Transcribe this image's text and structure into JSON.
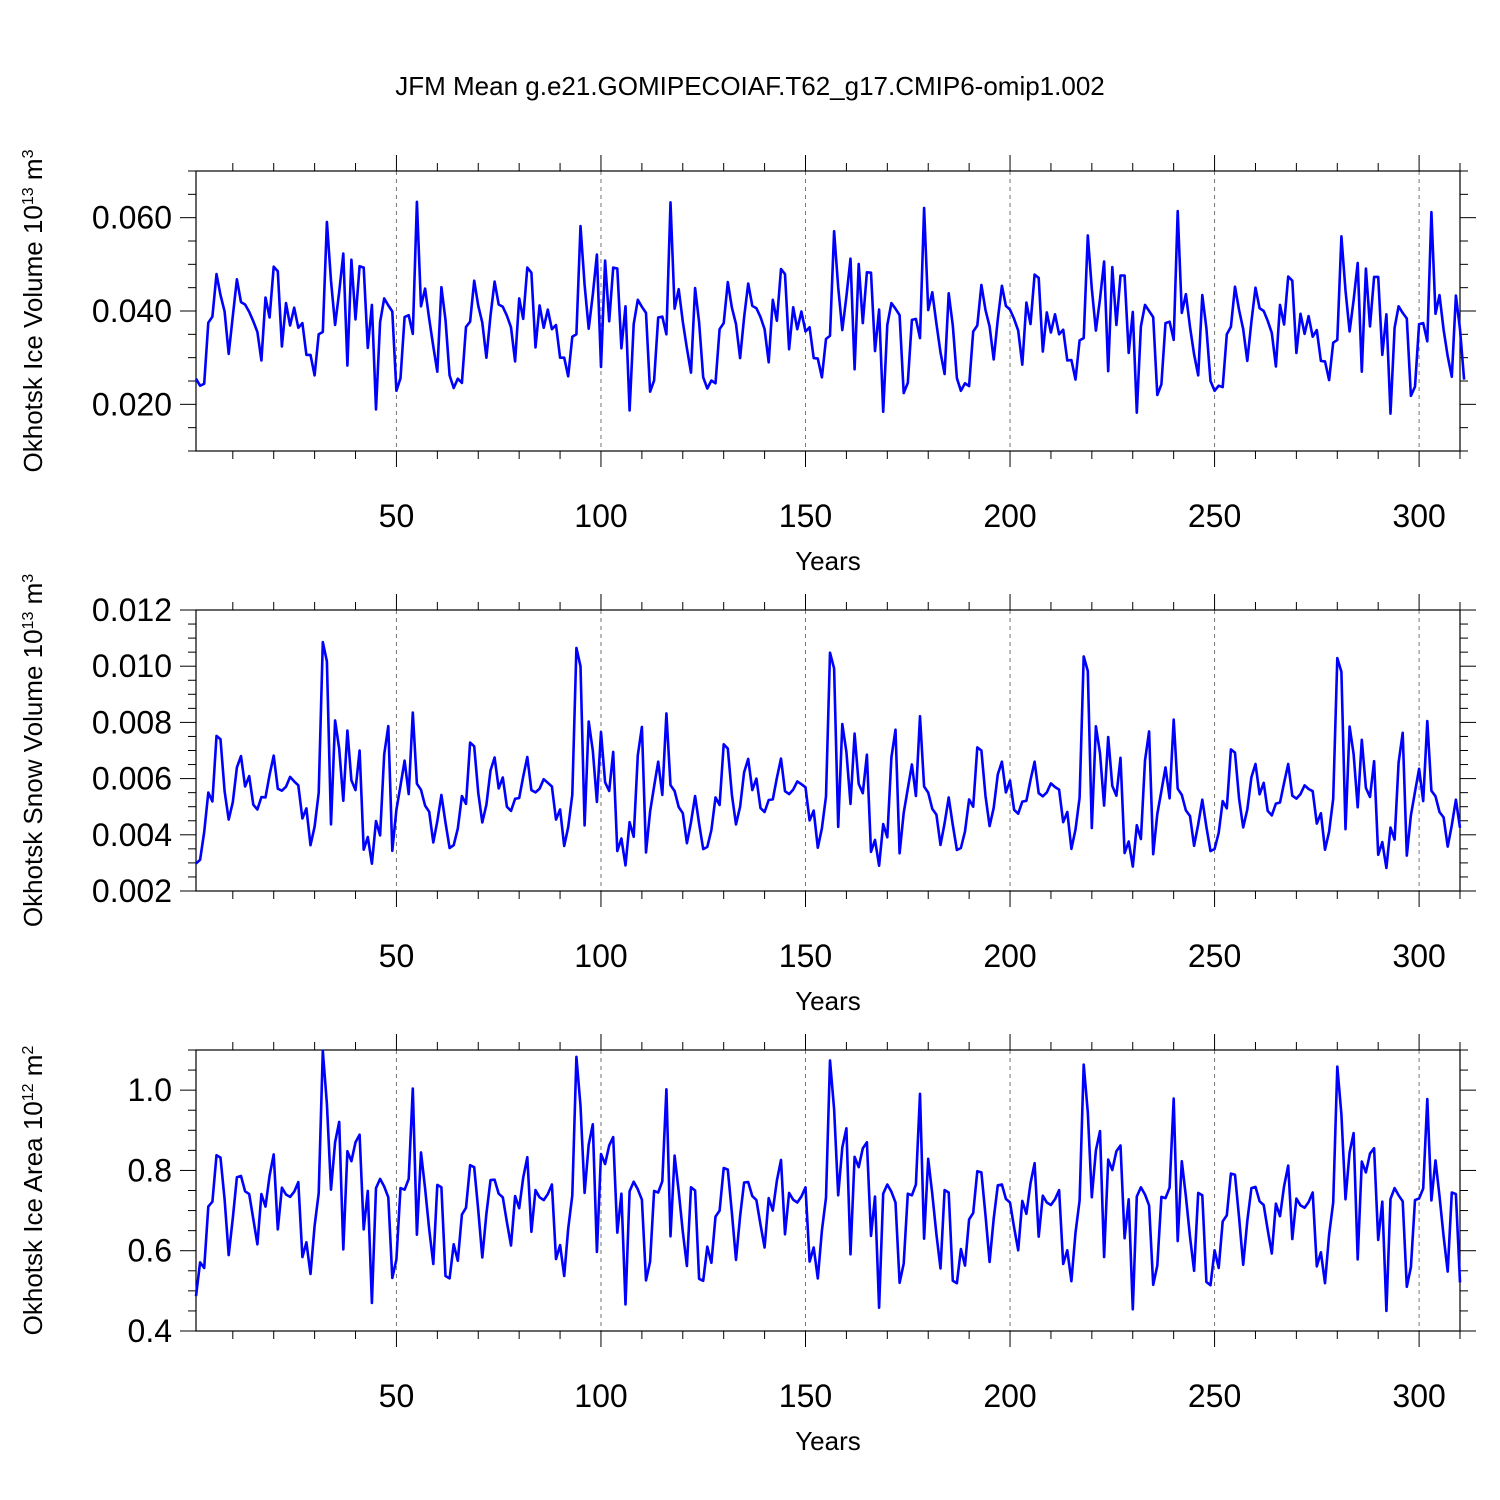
{
  "title": "JFM Mean g.e21.GOMIPECOIAF.T62_g17.CMIP6-omip1.002",
  "colors": {
    "line": "#0000ff",
    "axis": "#000000",
    "grid": "#777777"
  },
  "chart_data": [
    {
      "type": "line",
      "name": "ice-volume",
      "ylabel": {
        "text": "Okhotsk Ice Volume 10",
        "exp": "13",
        "unit": " m",
        "unit_exp": "3"
      },
      "xlabel": "Years",
      "xlim": [
        1,
        310
      ],
      "ylim": [
        0.01,
        0.07
      ],
      "yticks": [
        0.02,
        0.04,
        0.06
      ],
      "ytick_labels": [
        "0.020",
        "0.040",
        "0.060"
      ],
      "xticks": [
        50,
        100,
        150,
        200,
        250,
        300
      ],
      "xtick_labels": [
        "50",
        "100",
        "150",
        "200",
        "250",
        "300"
      ],
      "values": [
        0.0255,
        0.024,
        0.0244,
        0.0375,
        0.0388,
        0.0479,
        0.0434,
        0.0399,
        0.0308,
        0.0389,
        0.0468,
        0.0419,
        0.0414,
        0.0398,
        0.0378,
        0.0355,
        0.0294,
        0.0429,
        0.0386,
        0.0495,
        0.0485,
        0.0324,
        0.0417,
        0.0369,
        0.0407,
        0.0364,
        0.0374,
        0.0306,
        0.0306,
        0.0262,
        0.035,
        0.0355,
        0.0591,
        0.0465,
        0.037,
        0.0441,
        0.0523,
        0.0283,
        0.051,
        0.0382,
        0.0496,
        0.0493,
        0.0321,
        0.0413,
        0.0189,
        0.0376,
        0.0427,
        0.0412,
        0.0399,
        0.0229,
        0.0256,
        0.0387,
        0.0391,
        0.0351,
        0.0634,
        0.041,
        0.0448,
        0.0383,
        0.0324,
        0.027,
        0.0451,
        0.0381,
        0.0262,
        0.0235,
        0.0255,
        0.0246,
        0.0366,
        0.0377,
        0.0465,
        0.0411,
        0.0375,
        0.03,
        0.039,
        0.0463,
        0.0414,
        0.0409,
        0.039,
        0.0365,
        0.0292,
        0.0427,
        0.0383,
        0.0493,
        0.0482,
        0.0322,
        0.0412,
        0.0364,
        0.0403,
        0.0361,
        0.037,
        0.03,
        0.03,
        0.026,
        0.0345,
        0.035,
        0.0582,
        0.0456,
        0.0362,
        0.0435,
        0.0521,
        0.028,
        0.0508,
        0.0378,
        0.0493,
        0.0491,
        0.032,
        0.041,
        0.0187,
        0.0372,
        0.0424,
        0.0409,
        0.0396,
        0.0227,
        0.0251,
        0.0386,
        0.0388,
        0.035,
        0.0633,
        0.0405,
        0.0447,
        0.0377,
        0.032,
        0.0268,
        0.0449,
        0.0376,
        0.0258,
        0.0234,
        0.0251,
        0.0245,
        0.0361,
        0.0374,
        0.0462,
        0.0407,
        0.0372,
        0.0299,
        0.0386,
        0.0459,
        0.0411,
        0.0406,
        0.0387,
        0.0361,
        0.029,
        0.0424,
        0.0379,
        0.049,
        0.0479,
        0.0318,
        0.0408,
        0.0361,
        0.0399,
        0.0356,
        0.0365,
        0.0299,
        0.0298,
        0.0258,
        0.034,
        0.0347,
        0.0571,
        0.0451,
        0.0359,
        0.0431,
        0.0512,
        0.0275,
        0.0501,
        0.0374,
        0.0483,
        0.0482,
        0.0314,
        0.0403,
        0.0184,
        0.037,
        0.0417,
        0.0405,
        0.0391,
        0.0224,
        0.0246,
        0.0381,
        0.0383,
        0.0342,
        0.0621,
        0.0402,
        0.044,
        0.0373,
        0.0311,
        0.0265,
        0.0438,
        0.0369,
        0.0256,
        0.0229,
        0.0245,
        0.0239,
        0.0356,
        0.0369,
        0.0456,
        0.0402,
        0.0367,
        0.0296,
        0.0382,
        0.0454,
        0.0411,
        0.0403,
        0.0383,
        0.0358,
        0.0285,
        0.0418,
        0.0372,
        0.0478,
        0.0471,
        0.0313,
        0.0397,
        0.0354,
        0.0393,
        0.035,
        0.036,
        0.0294,
        0.0295,
        0.0253,
        0.0337,
        0.0342,
        0.0562,
        0.0448,
        0.0358,
        0.0426,
        0.0506,
        0.0271,
        0.0494,
        0.037,
        0.0476,
        0.0476,
        0.031,
        0.0398,
        0.0182,
        0.0367,
        0.0413,
        0.04,
        0.0387,
        0.022,
        0.0243,
        0.0374,
        0.0377,
        0.0338,
        0.0614,
        0.0396,
        0.0436,
        0.0366,
        0.0307,
        0.0262,
        0.0434,
        0.0363,
        0.025,
        0.0229,
        0.024,
        0.0237,
        0.035,
        0.0366,
        0.0452,
        0.0402,
        0.0361,
        0.0293,
        0.0377,
        0.045,
        0.0406,
        0.04,
        0.0379,
        0.0353,
        0.0281,
        0.0413,
        0.0371,
        0.0474,
        0.0465,
        0.031,
        0.0394,
        0.0351,
        0.0389,
        0.0345,
        0.0359,
        0.0293,
        0.0292,
        0.0252,
        0.0332,
        0.0338,
        0.056,
        0.0444,
        0.0356,
        0.0423,
        0.0503,
        0.027,
        0.0491,
        0.0367,
        0.0473,
        0.0473,
        0.0306,
        0.0393,
        0.018,
        0.0364,
        0.041,
        0.0396,
        0.0384,
        0.0218,
        0.0238,
        0.0372,
        0.0374,
        0.0335,
        0.0612,
        0.0394,
        0.0434,
        0.036,
        0.0303,
        0.0259,
        0.0433,
        0.0361,
        0.0253
      ]
    },
    {
      "type": "line",
      "name": "snow-volume",
      "ylabel": {
        "text": "Okhotsk Snow Volume 10",
        "exp": "13",
        "unit": " m",
        "unit_exp": "3"
      },
      "xlabel": "Years",
      "xlim": [
        1,
        310
      ],
      "ylim": [
        0.002,
        0.012
      ],
      "yticks": [
        0.002,
        0.004,
        0.006,
        0.008,
        0.01,
        0.012
      ],
      "ytick_labels": [
        "0.002",
        "0.004",
        "0.006",
        "0.008",
        "0.010",
        "0.012"
      ],
      "xticks": [
        50,
        100,
        150,
        200,
        250,
        300
      ],
      "xtick_labels": [
        "50",
        "100",
        "150",
        "200",
        "250",
        "300"
      ],
      "values": [
        0.00298,
        0.00311,
        0.0041,
        0.0055,
        0.00519,
        0.00752,
        0.0074,
        0.00555,
        0.00454,
        0.00516,
        0.0064,
        0.0068,
        0.00572,
        0.00609,
        0.00507,
        0.0049,
        0.00534,
        0.00533,
        0.00614,
        0.00682,
        0.00564,
        0.00557,
        0.00571,
        0.00606,
        0.0059,
        0.00576,
        0.00458,
        0.00494,
        0.00363,
        0.00429,
        0.00549,
        0.01086,
        0.01017,
        0.00437,
        0.00807,
        0.00706,
        0.00521,
        0.00771,
        0.00594,
        0.00559,
        0.007,
        0.00347,
        0.00392,
        0.00297,
        0.00449,
        0.00398,
        0.00686,
        0.00787,
        0.00343,
        0.00489,
        0.00575,
        0.00664,
        0.00545,
        0.00835,
        0.00582,
        0.0056,
        0.00504,
        0.00482,
        0.00373,
        0.00448,
        0.00542,
        0.00443,
        0.00353,
        0.00363,
        0.00422,
        0.00538,
        0.0051,
        0.00728,
        0.00715,
        0.00548,
        0.00444,
        0.00507,
        0.00629,
        0.00675,
        0.00565,
        0.00604,
        0.005,
        0.00485,
        0.00528,
        0.00531,
        0.00607,
        0.00677,
        0.00559,
        0.00551,
        0.00564,
        0.00598,
        0.00585,
        0.00572,
        0.00454,
        0.0049,
        0.0036,
        0.00427,
        0.00543,
        0.01065,
        0.01,
        0.00433,
        0.00803,
        0.007,
        0.00517,
        0.00766,
        0.00587,
        0.00556,
        0.00695,
        0.00342,
        0.00387,
        0.00291,
        0.00445,
        0.00393,
        0.00683,
        0.00784,
        0.00337,
        0.00483,
        0.00572,
        0.0066,
        0.00542,
        0.00832,
        0.00577,
        0.00556,
        0.00499,
        0.00477,
        0.0037,
        0.00445,
        0.00538,
        0.0044,
        0.00349,
        0.00357,
        0.00417,
        0.00533,
        0.00506,
        0.00722,
        0.00707,
        0.00542,
        0.00437,
        0.005,
        0.00622,
        0.0067,
        0.00559,
        0.006,
        0.00495,
        0.00481,
        0.00524,
        0.00526,
        0.00603,
        0.00671,
        0.00555,
        0.00545,
        0.00561,
        0.0059,
        0.0058,
        0.00569,
        0.00451,
        0.00486,
        0.00354,
        0.00423,
        0.00537,
        0.01048,
        0.00992,
        0.00428,
        0.00794,
        0.00695,
        0.0051,
        0.0076,
        0.00581,
        0.00548,
        0.00685,
        0.00339,
        0.00382,
        0.0029,
        0.00438,
        0.00391,
        0.00675,
        0.00774,
        0.00334,
        0.00478,
        0.00564,
        0.0065,
        0.00538,
        0.00822,
        0.00572,
        0.0055,
        0.00492,
        0.00472,
        0.00364,
        0.00441,
        0.00533,
        0.00435,
        0.00346,
        0.00353,
        0.00412,
        0.00526,
        0.005,
        0.00711,
        0.007,
        0.00538,
        0.00431,
        0.00496,
        0.00615,
        0.0066,
        0.00551,
        0.00593,
        0.00489,
        0.00475,
        0.00518,
        0.00521,
        0.00595,
        0.0066,
        0.00548,
        0.00537,
        0.00551,
        0.00583,
        0.0057,
        0.00561,
        0.00445,
        0.00481,
        0.0035,
        0.00419,
        0.00532,
        0.01035,
        0.00983,
        0.00424,
        0.00786,
        0.0069,
        0.00504,
        0.00748,
        0.00574,
        0.00539,
        0.00674,
        0.00335,
        0.00376,
        0.00287,
        0.00434,
        0.00385,
        0.00664,
        0.00768,
        0.00331,
        0.00474,
        0.00556,
        0.0064,
        0.0053,
        0.0081,
        0.00564,
        0.00542,
        0.00487,
        0.00467,
        0.00361,
        0.00437,
        0.00525,
        0.00428,
        0.00342,
        0.0035,
        0.00407,
        0.0052,
        0.00494,
        0.00704,
        0.00692,
        0.00528,
        0.00426,
        0.0049,
        0.00605,
        0.00652,
        0.00544,
        0.00585,
        0.00485,
        0.00469,
        0.00511,
        0.00515,
        0.00585,
        0.00652,
        0.00539,
        0.00529,
        0.00545,
        0.00576,
        0.00563,
        0.00555,
        0.0044,
        0.00477,
        0.00347,
        0.00411,
        0.00528,
        0.01029,
        0.0098,
        0.0042,
        0.00785,
        0.00688,
        0.00498,
        0.00738,
        0.00567,
        0.00535,
        0.00662,
        0.00329,
        0.00374,
        0.00282,
        0.00426,
        0.00383,
        0.00657,
        0.00763,
        0.00326,
        0.00469,
        0.00553,
        0.00635,
        0.0052,
        0.00805,
        0.00557,
        0.00537,
        0.00481,
        0.00462,
        0.00358,
        0.00434,
        0.00525,
        0.00425
      ]
    },
    {
      "type": "line",
      "name": "ice-area",
      "ylabel": {
        "text": "Okhotsk Ice Area 10",
        "exp": "12",
        "unit": " m",
        "unit_exp": "2"
      },
      "xlabel": "Years",
      "xlim": [
        1,
        310
      ],
      "ylim": [
        0.4,
        1.1
      ],
      "yticks": [
        0.4,
        0.6,
        0.8,
        1.0
      ],
      "ytick_labels": [
        "0.4",
        "0.6",
        "0.8",
        "1.0"
      ],
      "xticks": [
        50,
        100,
        150,
        200,
        250,
        300
      ],
      "xtick_labels": [
        "50",
        "100",
        "150",
        "200",
        "250",
        "300"
      ],
      "values": [
        0.487,
        0.571,
        0.557,
        0.71,
        0.722,
        0.838,
        0.832,
        0.728,
        0.589,
        0.681,
        0.783,
        0.786,
        0.748,
        0.741,
        0.679,
        0.616,
        0.741,
        0.71,
        0.787,
        0.84,
        0.653,
        0.757,
        0.74,
        0.734,
        0.747,
        0.771,
        0.584,
        0.621,
        0.542,
        0.662,
        0.743,
        1.098,
        0.966,
        0.752,
        0.87,
        0.921,
        0.603,
        0.848,
        0.823,
        0.87,
        0.889,
        0.653,
        0.749,
        0.47,
        0.756,
        0.779,
        0.76,
        0.733,
        0.532,
        0.578,
        0.756,
        0.752,
        0.779,
        1.004,
        0.64,
        0.845,
        0.755,
        0.653,
        0.567,
        0.764,
        0.758,
        0.537,
        0.531,
        0.616,
        0.575,
        0.69,
        0.707,
        0.813,
        0.808,
        0.7,
        0.583,
        0.692,
        0.776,
        0.777,
        0.742,
        0.733,
        0.671,
        0.613,
        0.736,
        0.706,
        0.782,
        0.833,
        0.647,
        0.751,
        0.733,
        0.726,
        0.741,
        0.765,
        0.579,
        0.614,
        0.537,
        0.655,
        0.738,
        1.083,
        0.961,
        0.744,
        0.864,
        0.915,
        0.597,
        0.841,
        0.816,
        0.862,
        0.883,
        0.645,
        0.742,
        0.466,
        0.748,
        0.772,
        0.753,
        0.727,
        0.526,
        0.573,
        0.749,
        0.745,
        0.773,
        1.002,
        0.636,
        0.837,
        0.748,
        0.647,
        0.562,
        0.758,
        0.75,
        0.53,
        0.525,
        0.61,
        0.57,
        0.685,
        0.7,
        0.806,
        0.802,
        0.694,
        0.577,
        0.686,
        0.77,
        0.771,
        0.736,
        0.726,
        0.665,
        0.608,
        0.731,
        0.7,
        0.775,
        0.826,
        0.641,
        0.744,
        0.727,
        0.72,
        0.735,
        0.758,
        0.573,
        0.608,
        0.531,
        0.65,
        0.732,
        1.074,
        0.953,
        0.738,
        0.857,
        0.905,
        0.591,
        0.834,
        0.808,
        0.855,
        0.87,
        0.637,
        0.735,
        0.458,
        0.742,
        0.765,
        0.747,
        0.72,
        0.52,
        0.568,
        0.742,
        0.738,
        0.765,
        0.991,
        0.63,
        0.829,
        0.741,
        0.641,
        0.556,
        0.751,
        0.745,
        0.525,
        0.519,
        0.604,
        0.563,
        0.678,
        0.694,
        0.798,
        0.795,
        0.688,
        0.572,
        0.68,
        0.763,
        0.765,
        0.729,
        0.72,
        0.658,
        0.601,
        0.724,
        0.692,
        0.768,
        0.818,
        0.635,
        0.737,
        0.72,
        0.714,
        0.728,
        0.751,
        0.567,
        0.601,
        0.524,
        0.645,
        0.725,
        1.064,
        0.945,
        0.733,
        0.85,
        0.898,
        0.584,
        0.827,
        0.801,
        0.848,
        0.862,
        0.631,
        0.728,
        0.454,
        0.735,
        0.758,
        0.74,
        0.713,
        0.515,
        0.563,
        0.734,
        0.731,
        0.757,
        0.979,
        0.624,
        0.823,
        0.735,
        0.635,
        0.55,
        0.744,
        0.738,
        0.522,
        0.514,
        0.601,
        0.557,
        0.673,
        0.688,
        0.792,
        0.789,
        0.682,
        0.565,
        0.674,
        0.756,
        0.759,
        0.723,
        0.714,
        0.652,
        0.593,
        0.717,
        0.686,
        0.761,
        0.812,
        0.629,
        0.73,
        0.713,
        0.707,
        0.721,
        0.745,
        0.561,
        0.596,
        0.519,
        0.64,
        0.72,
        1.059,
        0.94,
        0.728,
        0.845,
        0.893,
        0.578,
        0.822,
        0.795,
        0.842,
        0.855,
        0.627,
        0.722,
        0.45,
        0.729,
        0.756,
        0.738,
        0.723,
        0.51,
        0.559,
        0.726,
        0.73,
        0.755,
        0.978,
        0.725,
        0.825,
        0.736,
        0.636,
        0.548,
        0.745,
        0.741,
        0.521
      ]
    }
  ]
}
